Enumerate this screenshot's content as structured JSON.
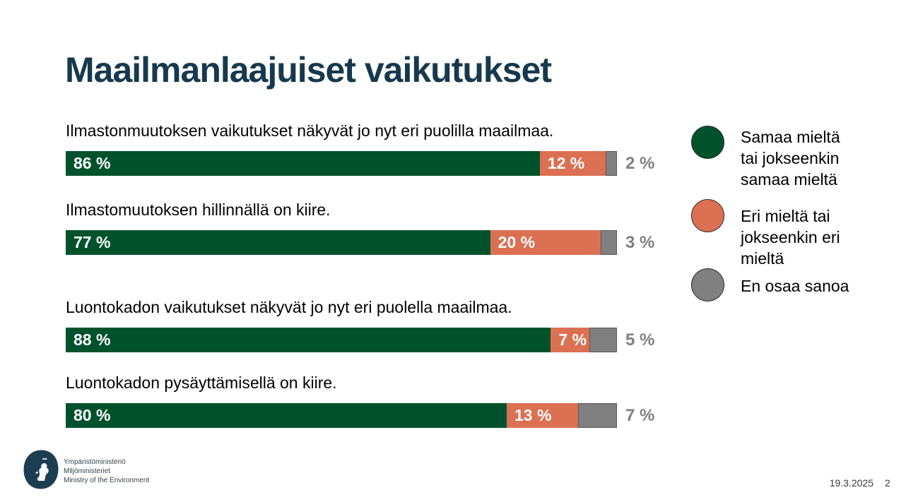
{
  "slide": {
    "title": "Maailmanlaajuiset vaikutukset"
  },
  "chart_data": {
    "type": "bar",
    "orientation": "horizontal_stacked",
    "unit": "%",
    "xlim": [
      0,
      100
    ],
    "grid": false,
    "legend_position": "right",
    "series_keys": [
      "agree",
      "disagree",
      "unknown"
    ],
    "colors": {
      "agree": "#00522D",
      "disagree": "#DB7053",
      "unknown": "#808080"
    },
    "rows": [
      {
        "statement": "Ilmastonmuutoksen vaikutukset näkyvät jo nyt eri puolilla maailmaa.",
        "segments": [
          {
            "key": "agree",
            "value": 86,
            "label": "86 %"
          },
          {
            "key": "disagree",
            "value": 12,
            "label": "12 %"
          },
          {
            "key": "unknown",
            "value": 2,
            "label": "2 %"
          }
        ]
      },
      {
        "statement": "Ilmastomuutoksen hillinnällä on kiire.",
        "segments": [
          {
            "key": "agree",
            "value": 77,
            "label": "77 %"
          },
          {
            "key": "disagree",
            "value": 20,
            "label": "20 %"
          },
          {
            "key": "unknown",
            "value": 3,
            "label": "3 %"
          }
        ]
      },
      {
        "statement": "Luontokadon vaikutukset näkyvät jo nyt eri puolella maailmaa.",
        "segments": [
          {
            "key": "agree",
            "value": 88,
            "label": "88 %"
          },
          {
            "key": "disagree",
            "value": 7,
            "label": "7 %"
          },
          {
            "key": "unknown",
            "value": 5,
            "label": "5 %"
          }
        ]
      },
      {
        "statement": "Luontokadon pysäyttämisellä on kiire.",
        "segments": [
          {
            "key": "agree",
            "value": 80,
            "label": "80 %"
          },
          {
            "key": "disagree",
            "value": 13,
            "label": "13 %"
          },
          {
            "key": "unknown",
            "value": 7,
            "label": "7 %"
          }
        ]
      }
    ]
  },
  "legend": {
    "items": [
      {
        "key": "agree",
        "color": "#00522D",
        "lines": [
          "Samaa mieltä",
          "tai jokseenkin",
          "samaa mieltä"
        ]
      },
      {
        "key": "disagree",
        "color": "#DB7053",
        "lines": [
          "Eri mieltä tai",
          "jokseenkin eri",
          "mieltä"
        ]
      },
      {
        "key": "unknown",
        "color": "#808080",
        "lines": [
          "En osaa sanoa"
        ]
      }
    ]
  },
  "footer": {
    "org_lines": [
      "Ympäristöministeriö",
      "Miljöministeriet",
      "Ministry of the Environment"
    ],
    "date": "19.3.2025",
    "page": "2"
  }
}
